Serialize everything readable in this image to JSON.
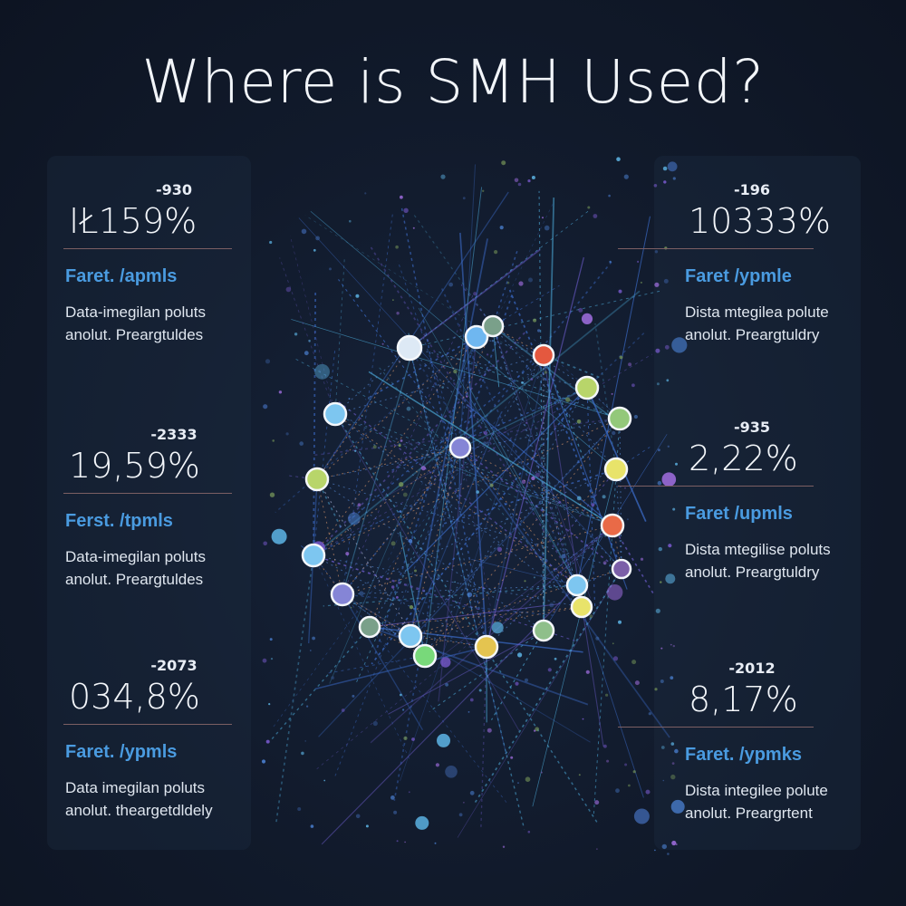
{
  "title": "Where is SMH Used?",
  "stats": [
    {
      "small": "-930",
      "big": "IŁ159%",
      "heading": "Faret. /apmls",
      "desc1": "Data-imegilan poluts",
      "desc2": "anolut. Preargtuldes"
    },
    {
      "small": "-2333",
      "big": "19,59%",
      "heading": "Ferst. /tpmls",
      "desc1": "Data-imegilan poluts",
      "desc2": "anolut. Preargtuldes"
    },
    {
      "small": "-2073",
      "big": "034,8%",
      "heading": "Faret. /ypmls",
      "desc1": "Data imegilan poluts",
      "desc2": "anolut. theargetdldely"
    },
    {
      "small": "-196",
      "big": "10333%",
      "heading": "Faret /ypmle",
      "desc1": "Dista mtegilea polute",
      "desc2": "anolut. Preargtuldry"
    },
    {
      "small": "-935",
      "big": "2,22%",
      "heading": "Faret /upmls",
      "desc1": "Dista mtegilise poluts",
      "desc2": "anolut. Preargtuldry"
    },
    {
      "small": "-2012",
      "big": "8,17%",
      "heading": "Faret. /ypmks",
      "desc1": "Dista integilee polute",
      "desc2": "anolut. Preargrtent"
    }
  ],
  "colors": {
    "background": "#111a2b",
    "accent_blue": "#4a9be0",
    "rule": "#7c5f63",
    "node_colors": [
      "#dde9f5",
      "#6fb7f0",
      "#e4583f",
      "#b8d56a",
      "#93c87a",
      "#e8e36a",
      "#e96a47",
      "#7b5fa8",
      "#8fbf8a",
      "#e4c450",
      "#7dc6f0",
      "#8585d6",
      "#7aa08a",
      "#78d97a"
    ]
  }
}
